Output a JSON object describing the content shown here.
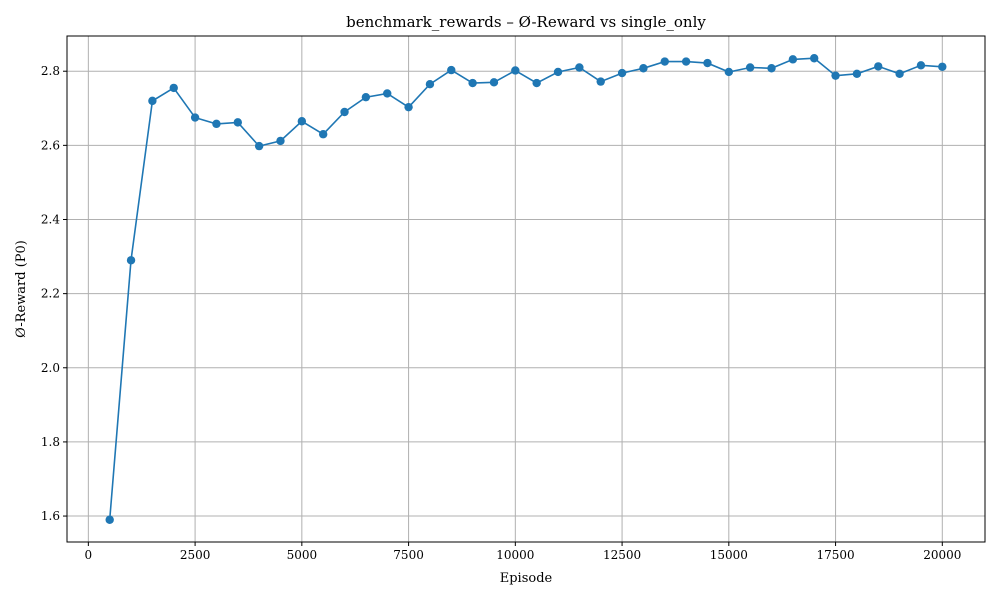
{
  "chart_data": {
    "type": "line",
    "title": "benchmark_rewards – Ø-Reward vs single_only",
    "xlabel": "Episode",
    "ylabel": "Ø-Reward (P0)",
    "xlim": [
      -500,
      21000
    ],
    "ylim": [
      1.53,
      2.895
    ],
    "xticks": [
      0,
      2500,
      5000,
      7500,
      10000,
      12500,
      15000,
      17500,
      20000
    ],
    "yticks": [
      1.6,
      1.8,
      2.0,
      2.2,
      2.4,
      2.6,
      2.8
    ],
    "xtick_labels": [
      "0",
      "2500",
      "5000",
      "7500",
      "10000",
      "12500",
      "15000",
      "17500",
      "20000"
    ],
    "ytick_labels": [
      "1.6",
      "1.8",
      "2.0",
      "2.2",
      "2.4",
      "2.6",
      "2.8"
    ],
    "grid": true,
    "color": "#1f77b4",
    "marker": "circle",
    "x": [
      500,
      1000,
      1500,
      2000,
      2500,
      3000,
      3500,
      4000,
      4500,
      5000,
      5500,
      6000,
      6500,
      7000,
      7500,
      8000,
      8500,
      9000,
      9500,
      10000,
      10500,
      11000,
      11500,
      12000,
      12500,
      13000,
      13500,
      14000,
      14500,
      15000,
      15500,
      16000,
      16500,
      17000,
      17500,
      18000,
      18500,
      19000,
      19500,
      20000
    ],
    "y": [
      1.59,
      2.29,
      2.72,
      2.755,
      2.675,
      2.658,
      2.662,
      2.598,
      2.612,
      2.665,
      2.63,
      2.69,
      2.73,
      2.74,
      2.703,
      2.765,
      2.803,
      2.768,
      2.77,
      2.802,
      2.768,
      2.798,
      2.81,
      2.772,
      2.795,
      2.808,
      2.826,
      2.826,
      2.822,
      2.798,
      2.81,
      2.808,
      2.832,
      2.835,
      2.788,
      2.793,
      2.813,
      2.793,
      2.816,
      2.812
    ]
  }
}
